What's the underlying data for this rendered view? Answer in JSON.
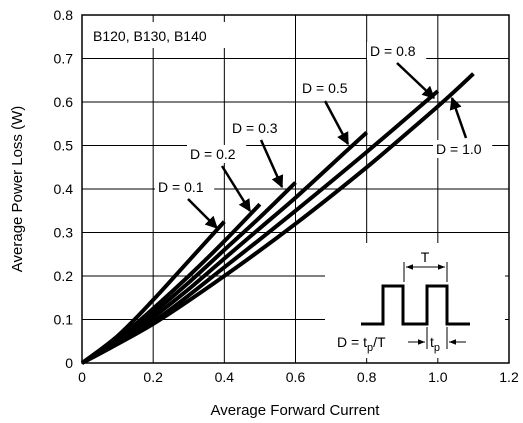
{
  "chart_data": {
    "type": "line",
    "title": "",
    "xlabel": "Average Forward Current",
    "ylabel": "Average Power Loss (W)",
    "xlim": [
      0,
      1.2
    ],
    "ylim": [
      0,
      0.8
    ],
    "grid": true,
    "x_ticks": [
      "0",
      "0.2",
      "0.4",
      "0.6",
      "0.8",
      "1.0",
      "1.2"
    ],
    "y_ticks": [
      "0",
      "0.1",
      "0.2",
      "0.3",
      "0.4",
      "0.5",
      "0.6",
      "0.7",
      "0.8"
    ],
    "part_label": "B120, B130, B140",
    "series": [
      {
        "name": "D = 0.1",
        "x": [
          0,
          0.1,
          0.2,
          0.3,
          0.4
        ],
        "y": [
          0,
          0.062,
          0.145,
          0.235,
          0.325
        ]
      },
      {
        "name": "D = 0.2",
        "x": [
          0,
          0.1,
          0.2,
          0.3,
          0.4,
          0.5
        ],
        "y": [
          0,
          0.055,
          0.125,
          0.2,
          0.28,
          0.365
        ]
      },
      {
        "name": "D = 0.3",
        "x": [
          0,
          0.1,
          0.2,
          0.3,
          0.4,
          0.5,
          0.6
        ],
        "y": [
          0,
          0.05,
          0.115,
          0.185,
          0.26,
          0.335,
          0.415
        ]
      },
      {
        "name": "D = 0.5",
        "x": [
          0,
          0.1,
          0.2,
          0.3,
          0.4,
          0.5,
          0.6,
          0.7,
          0.8
        ],
        "y": [
          0,
          0.045,
          0.105,
          0.17,
          0.24,
          0.31,
          0.38,
          0.455,
          0.53
        ]
      },
      {
        "name": "D = 0.8",
        "x": [
          0,
          0.2,
          0.4,
          0.6,
          0.8,
          1.0
        ],
        "y": [
          0,
          0.095,
          0.22,
          0.35,
          0.485,
          0.625
        ]
      },
      {
        "name": "D = 1.0",
        "x": [
          0,
          0.2,
          0.4,
          0.6,
          0.8,
          1.0,
          1.1
        ],
        "y": [
          0,
          0.09,
          0.2,
          0.32,
          0.45,
          0.59,
          0.665
        ]
      }
    ],
    "inset": {
      "period_label": "T",
      "pulse_label": "t",
      "pulse_sub": "p",
      "formula_prefix": "D = t",
      "formula_sub": "p",
      "formula_suffix": "/T"
    }
  }
}
